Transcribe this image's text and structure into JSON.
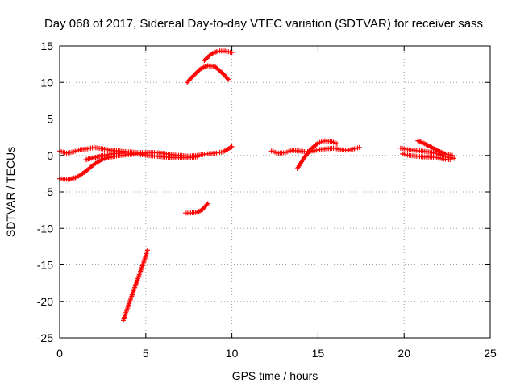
{
  "chart_data": {
    "type": "scatter",
    "title": "Day 068 of 2017, Sidereal Day-to-day VTEC variation (SDTVAR) for receiver sass",
    "xlabel": "GPS time / hours",
    "ylabel": "SDTVAR / TECUs",
    "xlim": [
      0,
      25
    ],
    "ylim": [
      -25,
      15
    ],
    "xticks": [
      0,
      5,
      10,
      15,
      20,
      25
    ],
    "yticks": [
      -25,
      -20,
      -15,
      -10,
      -5,
      0,
      5,
      10,
      15
    ],
    "grid": true,
    "color": "#ff0000",
    "series": [
      {
        "x": [
          0.0,
          0.4,
          0.8,
          1.2,
          1.6,
          2.0,
          2.5,
          3.0,
          3.5,
          4.0,
          4.5,
          5.0,
          5.5,
          6.0,
          6.5,
          7.0,
          7.5,
          8.0,
          8.5,
          9.0,
          9.5,
          10.0
        ],
        "y": [
          0.6,
          0.3,
          0.5,
          0.8,
          0.9,
          1.1,
          0.9,
          0.7,
          0.6,
          0.5,
          0.4,
          0.4,
          0.4,
          0.3,
          0.1,
          0.0,
          -0.1,
          0.0,
          0.2,
          0.3,
          0.5,
          1.2
        ]
      },
      {
        "x": [
          0.0,
          0.5,
          1.0,
          1.5,
          2.0,
          2.5,
          3.0,
          3.5,
          4.0,
          4.5,
          5.0
        ],
        "y": [
          -3.2,
          -3.3,
          -3.0,
          -2.2,
          -1.2,
          -0.5,
          -0.2,
          0.0,
          0.1,
          0.2,
          0.2
        ]
      },
      {
        "x": [
          1.5,
          2.0,
          2.5,
          3.0,
          3.5,
          4.0,
          4.5,
          5.0,
          5.5,
          6.0,
          6.5,
          7.0,
          7.5,
          8.0
        ],
        "y": [
          -0.6,
          -0.3,
          0.0,
          0.2,
          0.3,
          0.3,
          0.2,
          0.0,
          -0.1,
          -0.2,
          -0.3,
          -0.3,
          -0.3,
          -0.2
        ]
      },
      {
        "x": [
          3.7,
          4.0,
          4.3,
          4.6,
          4.9,
          5.1
        ],
        "y": [
          -22.6,
          -20.5,
          -18.5,
          -16.5,
          -14.5,
          -13.0
        ]
      },
      {
        "x": [
          7.3,
          7.6,
          8.0,
          8.3,
          8.6
        ],
        "y": [
          -7.9,
          -7.9,
          -7.8,
          -7.4,
          -6.6
        ]
      },
      {
        "x": [
          7.4,
          7.8,
          8.2,
          8.6,
          9.0,
          9.4,
          9.8
        ],
        "y": [
          10.0,
          11.0,
          11.9,
          12.3,
          12.2,
          11.4,
          10.4
        ]
      },
      {
        "x": [
          8.4,
          8.8,
          9.2,
          9.6,
          10.0
        ],
        "y": [
          13.0,
          13.9,
          14.3,
          14.3,
          14.1
        ]
      },
      {
        "x": [
          12.3,
          12.7,
          13.1,
          13.5,
          13.9,
          14.3,
          14.7,
          15.1,
          15.5,
          15.9,
          16.3,
          16.7,
          17.1,
          17.4
        ],
        "y": [
          0.6,
          0.3,
          0.4,
          0.7,
          0.6,
          0.5,
          0.6,
          0.8,
          0.9,
          1.0,
          0.8,
          0.7,
          0.9,
          1.1
        ]
      },
      {
        "x": [
          13.8,
          14.2,
          14.6,
          15.0,
          15.4,
          15.8,
          16.1
        ],
        "y": [
          -1.8,
          -0.3,
          0.9,
          1.7,
          2.0,
          1.9,
          1.6
        ]
      },
      {
        "x": [
          19.8,
          20.2,
          20.6,
          21.0,
          21.4,
          21.8,
          22.2,
          22.6,
          22.9
        ],
        "y": [
          1.0,
          0.8,
          0.7,
          0.6,
          0.5,
          0.3,
          0.0,
          -0.3,
          -0.4
        ]
      },
      {
        "x": [
          20.8,
          21.2,
          21.6,
          22.0,
          22.4,
          22.8
        ],
        "y": [
          2.0,
          1.6,
          1.1,
          0.6,
          0.2,
          0.0
        ]
      },
      {
        "x": [
          19.9,
          20.3,
          20.7,
          21.1,
          21.5,
          21.9,
          22.3,
          22.7
        ],
        "y": [
          0.2,
          0.0,
          -0.1,
          -0.2,
          -0.2,
          -0.3,
          -0.5,
          -0.6
        ]
      }
    ]
  }
}
